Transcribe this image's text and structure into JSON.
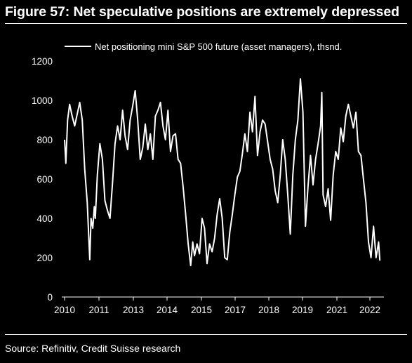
{
  "figure": {
    "title": "Figure 57: Net speculative positions are extremely depressed",
    "source": "Source: Refinitiv, Credit Suisse research"
  },
  "colors": {
    "background": "#000000",
    "line": "#ffffff",
    "text": "#ffffff"
  },
  "chart_data": {
    "type": "line",
    "title": "",
    "xlabel": "",
    "ylabel": "",
    "ylim": [
      0,
      1200
    ],
    "yticks": [
      "0",
      "200",
      "400",
      "600",
      "800",
      "1000",
      "1200"
    ],
    "xticks": [
      "2010",
      "2011",
      "2013",
      "2014",
      "2015",
      "2017",
      "2018",
      "2019",
      "2021",
      "2022"
    ],
    "grid": false,
    "legend_position": "top",
    "series": [
      {
        "name": "Net positioning mini S&P 500 future (asset managers), thsnd.",
        "x": [
          2010.0,
          2010.05,
          2010.12,
          2010.2,
          2010.3,
          2010.4,
          2010.5,
          2010.6,
          2010.7,
          2010.8,
          2010.9,
          2011.0,
          2011.05,
          2011.12,
          2011.18,
          2011.22,
          2011.3,
          2011.4,
          2011.5,
          2011.6,
          2011.7,
          2011.8,
          2011.9,
          2012.0,
          2012.1,
          2012.2,
          2012.3,
          2012.4,
          2012.5,
          2012.6,
          2012.7,
          2012.8,
          2012.9,
          2013.0,
          2013.1,
          2013.2,
          2013.3,
          2013.4,
          2013.5,
          2013.6,
          2013.7,
          2013.8,
          2013.9,
          2014.0,
          2014.1,
          2014.2,
          2014.3,
          2014.4,
          2014.5,
          2014.6,
          2014.7,
          2014.8,
          2014.9,
          2015.0,
          2015.08,
          2015.15,
          2015.25,
          2015.35,
          2015.45,
          2015.55,
          2015.65,
          2015.75,
          2015.85,
          2015.95,
          2016.05,
          2016.15,
          2016.25,
          2016.35,
          2016.45,
          2016.55,
          2016.65,
          2016.75,
          2016.85,
          2016.95,
          2017.05,
          2017.15,
          2017.25,
          2017.35,
          2017.45,
          2017.55,
          2017.65,
          2017.75,
          2017.85,
          2017.95,
          2018.05,
          2018.15,
          2018.25,
          2018.35,
          2018.45,
          2018.55,
          2018.65,
          2018.75,
          2018.85,
          2018.95,
          2019.05,
          2019.15,
          2019.25,
          2019.35,
          2019.45,
          2019.55,
          2019.65,
          2019.75,
          2019.85,
          2019.95,
          2020.05,
          2020.15,
          2020.2,
          2020.25,
          2020.35,
          2020.45,
          2020.55,
          2020.65,
          2020.75,
          2020.85,
          2020.95,
          2021.05,
          2021.15,
          2021.25,
          2021.35,
          2021.45,
          2021.55,
          2021.65,
          2021.75,
          2021.85,
          2021.95,
          2022.05,
          2022.15,
          2022.25,
          2022.35,
          2022.45,
          2022.5
        ],
        "values": [
          800,
          680,
          900,
          980,
          920,
          870,
          930,
          990,
          900,
          650,
          480,
          190,
          400,
          350,
          460,
          400,
          620,
          780,
          700,
          490,
          440,
          400,
          580,
          780,
          870,
          800,
          950,
          820,
          750,
          900,
          970,
          1050,
          900,
          700,
          760,
          880,
          750,
          830,
          700,
          920,
          950,
          990,
          870,
          800,
          950,
          740,
          820,
          830,
          700,
          680,
          560,
          420,
          270,
          160,
          280,
          210,
          270,
          220,
          400,
          350,
          170,
          270,
          230,
          300,
          420,
          500,
          400,
          200,
          190,
          330,
          420,
          520,
          610,
          640,
          730,
          830,
          740,
          940,
          840,
          1020,
          720,
          840,
          900,
          880,
          790,
          700,
          650,
          540,
          480,
          620,
          800,
          700,
          520,
          320,
          620,
          800,
          900,
          1110,
          940,
          360,
          560,
          720,
          570,
          700,
          780,
          870,
          1040,
          520,
          460,
          550,
          390,
          620,
          740,
          700,
          860,
          790,
          920,
          980,
          920,
          860,
          940,
          740,
          720,
          600,
          480,
          280,
          200,
          360,
          200,
          280,
          185
        ]
      }
    ]
  }
}
